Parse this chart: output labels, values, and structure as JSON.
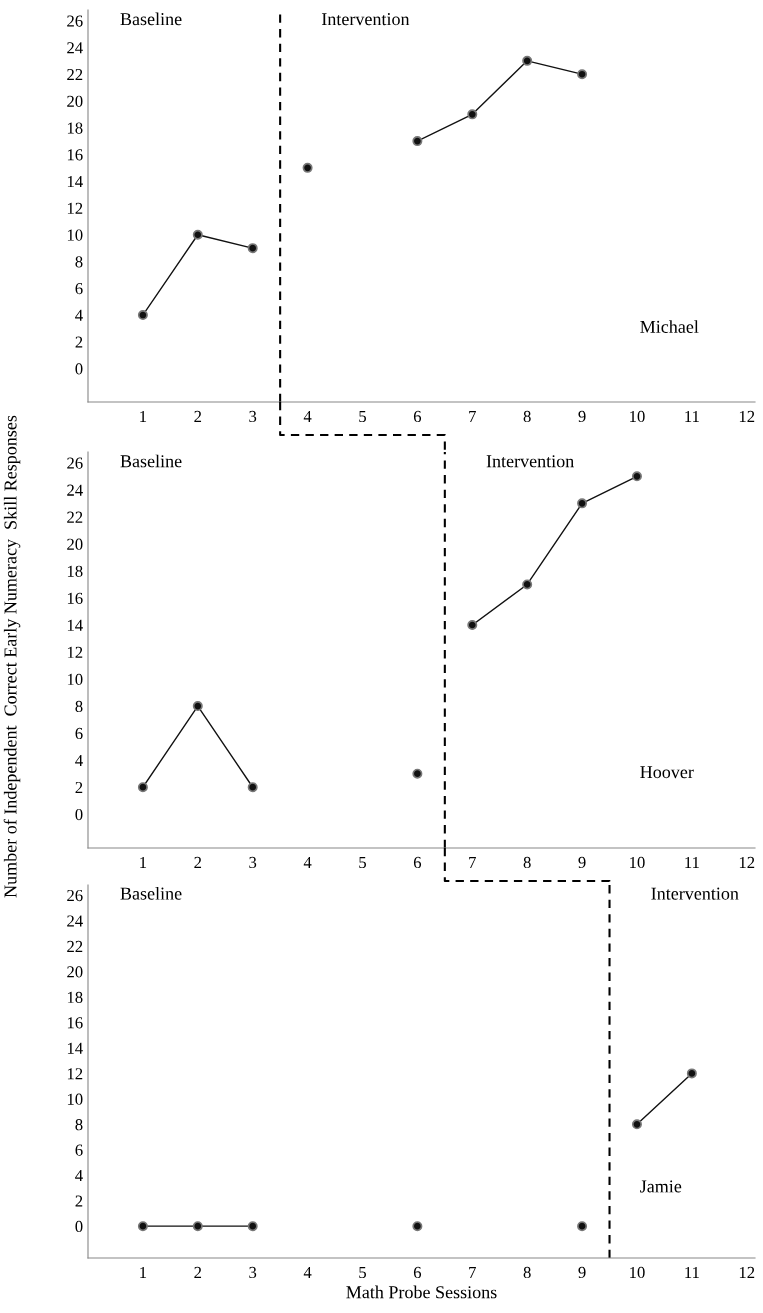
{
  "chart_data": [
    {
      "type": "line",
      "xlim": [
        0,
        12.15
      ],
      "xticks": [
        1,
        2,
        3,
        4,
        5,
        6,
        7,
        8,
        9,
        10,
        11,
        12
      ],
      "ylim": [
        -2.5,
        26.8
      ],
      "yticks": [
        0,
        2,
        4,
        6,
        8,
        10,
        12,
        14,
        16,
        18,
        20,
        22,
        24,
        26
      ],
      "marker": "circle",
      "grid": false,
      "series": [
        {
          "color": "#111111",
          "x": [
            1,
            2,
            3
          ],
          "values": [
            4,
            10,
            9
          ]
        },
        {
          "color": "#111111",
          "x": [
            4
          ],
          "values": [
            15
          ]
        },
        {
          "color": "#111111",
          "x": [
            6,
            7,
            8,
            9
          ],
          "values": [
            17,
            19,
            23,
            22
          ]
        }
      ],
      "ref_lines": [
        {
          "axis": "x",
          "value": 3.5,
          "color": "#000000",
          "line_style": "dashed"
        }
      ],
      "annotations": [
        "Baseline",
        "Intervention",
        "Michael"
      ]
    },
    {
      "type": "line",
      "xlim": [
        0,
        12.15
      ],
      "xticks": [
        1,
        2,
        3,
        4,
        5,
        6,
        7,
        8,
        9,
        10,
        11,
        12
      ],
      "ylim": [
        -2.5,
        26.8
      ],
      "yticks": [
        0,
        2,
        4,
        6,
        8,
        10,
        12,
        14,
        16,
        18,
        20,
        22,
        24,
        26
      ],
      "marker": "circle",
      "grid": false,
      "ylabel": "Number of Independent  Correct Early Numeracy  Skill Responses",
      "series": [
        {
          "color": "#111111",
          "x": [
            1,
            2,
            3
          ],
          "values": [
            2,
            8,
            2
          ]
        },
        {
          "color": "#111111",
          "x": [
            6
          ],
          "values": [
            3
          ]
        },
        {
          "color": "#111111",
          "x": [
            7,
            8,
            9,
            10
          ],
          "values": [
            14,
            17,
            23,
            25
          ]
        }
      ],
      "ref_lines": [
        {
          "axis": "x",
          "value": 6.5,
          "color": "#000000",
          "line_style": "dashed"
        }
      ],
      "annotations": [
        "Baseline",
        "Intervention",
        "Hoover"
      ]
    },
    {
      "type": "line",
      "xlim": [
        0,
        12.15
      ],
      "xticks": [
        1,
        2,
        3,
        4,
        5,
        6,
        7,
        8,
        9,
        10,
        11,
        12
      ],
      "ylim": [
        -2.5,
        26.8
      ],
      "yticks": [
        0,
        2,
        4,
        6,
        8,
        10,
        12,
        14,
        16,
        18,
        20,
        22,
        24,
        26
      ],
      "marker": "circle",
      "grid": false,
      "xlabel": "Math Probe Sessions",
      "series": [
        {
          "color": "#111111",
          "x": [
            1,
            2,
            3
          ],
          "values": [
            0,
            0,
            0
          ]
        },
        {
          "color": "#111111",
          "x": [
            6
          ],
          "values": [
            0
          ]
        },
        {
          "color": "#111111",
          "x": [
            9
          ],
          "values": [
            0
          ]
        },
        {
          "color": "#111111",
          "x": [
            10,
            11
          ],
          "values": [
            8,
            12
          ]
        }
      ],
      "ref_lines": [
        {
          "axis": "x",
          "value": 9.5,
          "color": "#000000",
          "line_style": "dashed"
        }
      ],
      "annotations": [
        "Baseline",
        "Intervention",
        "Jamie"
      ]
    }
  ]
}
